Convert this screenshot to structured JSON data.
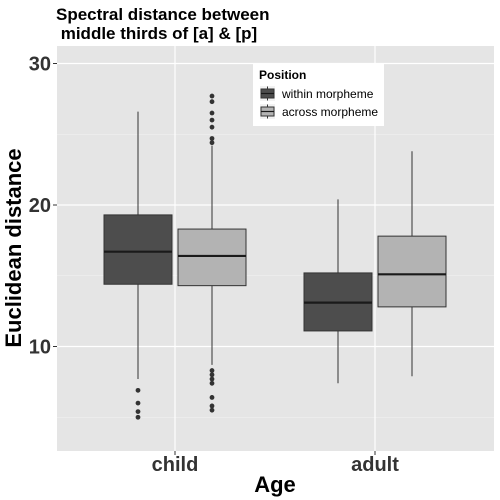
{
  "chart_data": {
    "type": "boxplot",
    "title": "Spectral distance between\n middle thirds of [a] & [p]",
    "xlabel": "Age",
    "ylabel": "Euclidean distance",
    "categories": [
      "child",
      "adult"
    ],
    "y_ticks": [
      10,
      20,
      30
    ],
    "ylim": [
      3,
      32
    ],
    "grid": true,
    "legend": {
      "title": "Position",
      "placement": "top-center",
      "entries": [
        {
          "name": "within morpheme",
          "color": "#4d4d4d"
        },
        {
          "name": "across morpheme",
          "color": "#b3b3b3"
        }
      ]
    },
    "series": [
      {
        "name": "within morpheme",
        "color": "#4d4d4d",
        "boxes": [
          {
            "category": "child",
            "whisker_low": 7.7,
            "q1": 14.4,
            "median": 16.7,
            "q3": 19.3,
            "whisker_high": 26.6,
            "outliers": [
              6.9,
              6.0,
              5.4,
              5.0
            ]
          },
          {
            "category": "adult",
            "whisker_low": 7.4,
            "q1": 11.1,
            "median": 13.1,
            "q3": 15.2,
            "whisker_high": 20.4,
            "outliers": []
          }
        ]
      },
      {
        "name": "across morpheme",
        "color": "#b3b3b3",
        "boxes": [
          {
            "category": "child",
            "whisker_low": 8.7,
            "q1": 14.3,
            "median": 16.4,
            "q3": 18.3,
            "whisker_high": 24.2,
            "outliers": [
              27.7,
              27.3,
              26.5,
              26.0,
              25.5,
              24.7,
              24.4,
              8.3,
              8.0,
              7.7,
              7.4,
              6.4,
              5.8,
              5.5
            ]
          },
          {
            "category": "adult",
            "whisker_low": 7.9,
            "q1": 12.8,
            "median": 15.1,
            "q3": 17.8,
            "whisker_high": 23.8,
            "outliers": []
          }
        ]
      }
    ]
  }
}
